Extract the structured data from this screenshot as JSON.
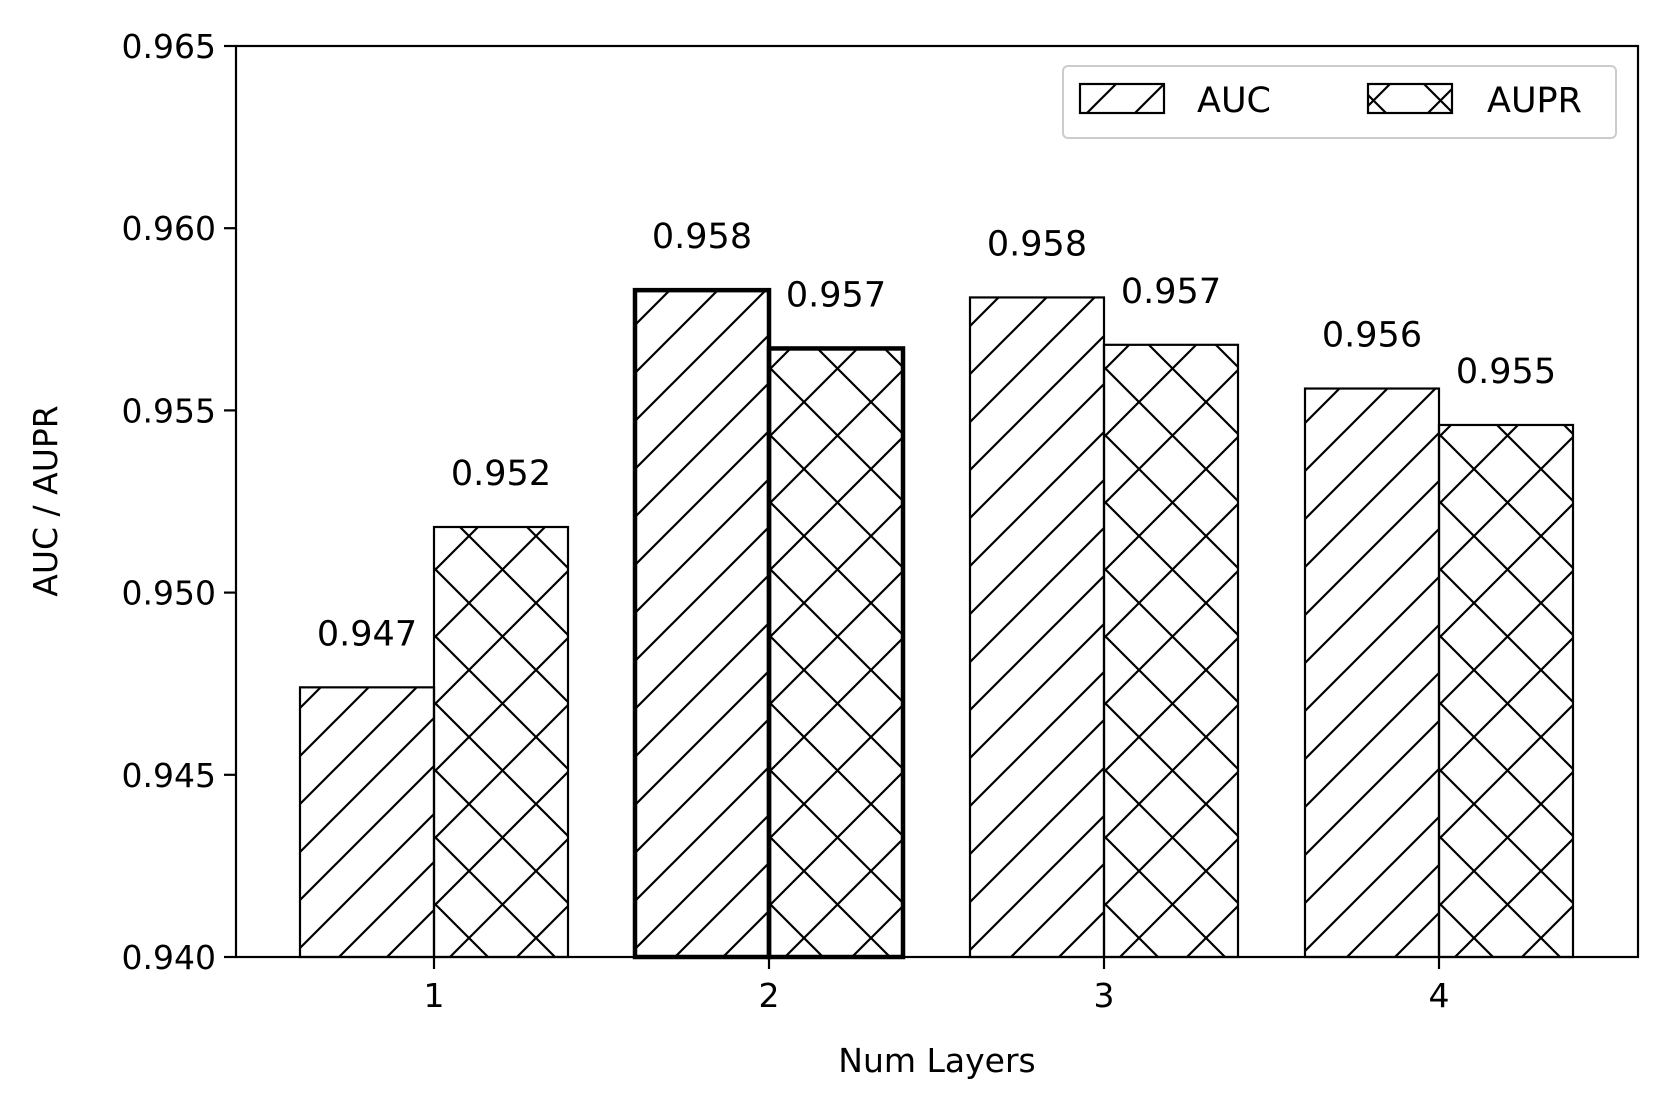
{
  "chart_data": {
    "type": "bar",
    "xlabel": "Num Layers",
    "ylabel": "AUC / AUPR",
    "categories": [
      "1",
      "2",
      "3",
      "4"
    ],
    "ylim": [
      0.94,
      0.965
    ],
    "yticks": [
      "0.940",
      "0.945",
      "0.950",
      "0.955",
      "0.960",
      "0.965"
    ],
    "series": [
      {
        "name": "AUC",
        "values": [
          0.9474,
          0.9583,
          0.9581,
          0.9556
        ],
        "labels": [
          "0.947",
          "0.958",
          "0.958",
          "0.956"
        ],
        "hatch": "diagonal"
      },
      {
        "name": "AUPR",
        "values": [
          0.9518,
          0.9567,
          0.9568,
          0.9546
        ],
        "labels": [
          "0.952",
          "0.957",
          "0.957",
          "0.955"
        ],
        "hatch": "cross"
      }
    ],
    "highlighted_category": "2",
    "legend_position": "top-right",
    "grid": false,
    "colors": {
      "bar_fill": "#ffffff",
      "stroke": "#000000",
      "legend_border": "#cccccc"
    }
  }
}
